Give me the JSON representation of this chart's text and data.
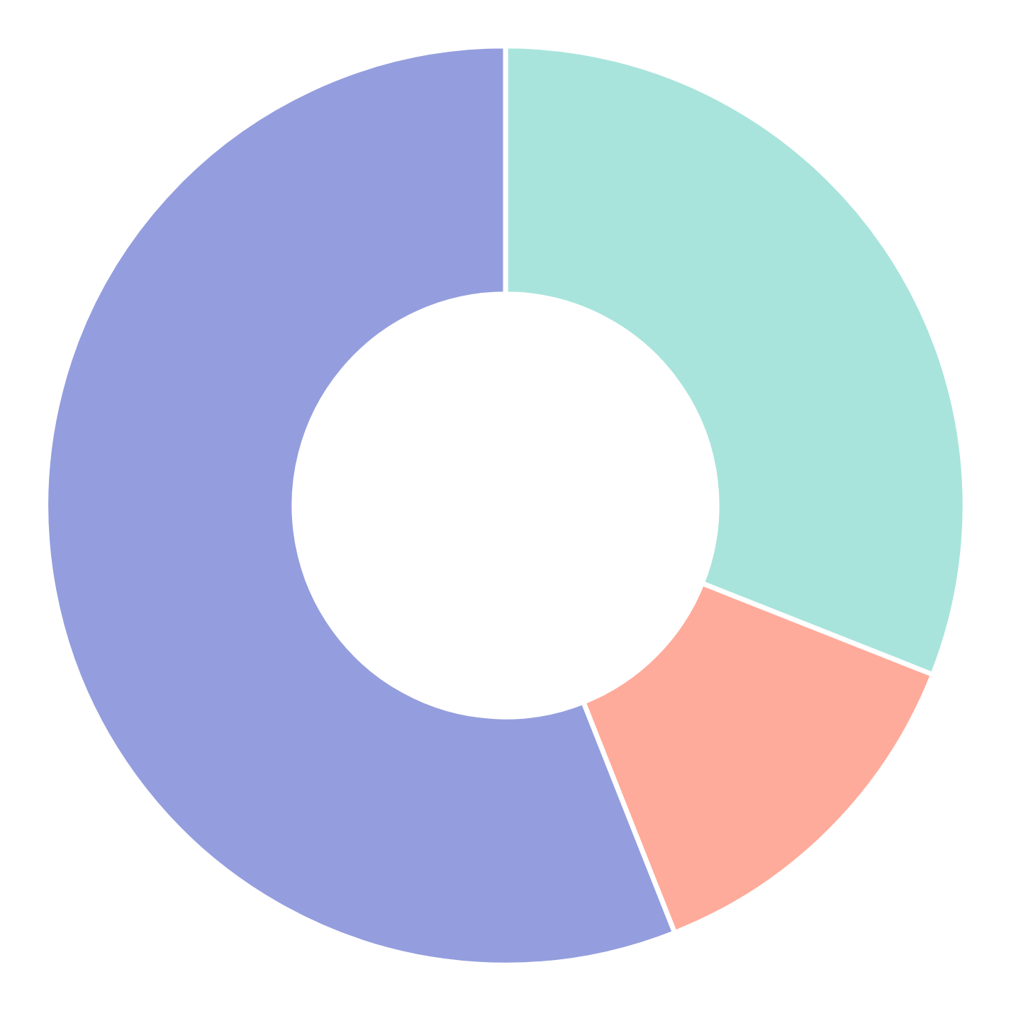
{
  "chart_data": {
    "type": "donut",
    "categories": [
      null,
      null,
      null
    ],
    "values": [
      31,
      13,
      56
    ],
    "colors": [
      "#a8e4dc",
      "#ffab9b",
      "#949ede"
    ]
  }
}
